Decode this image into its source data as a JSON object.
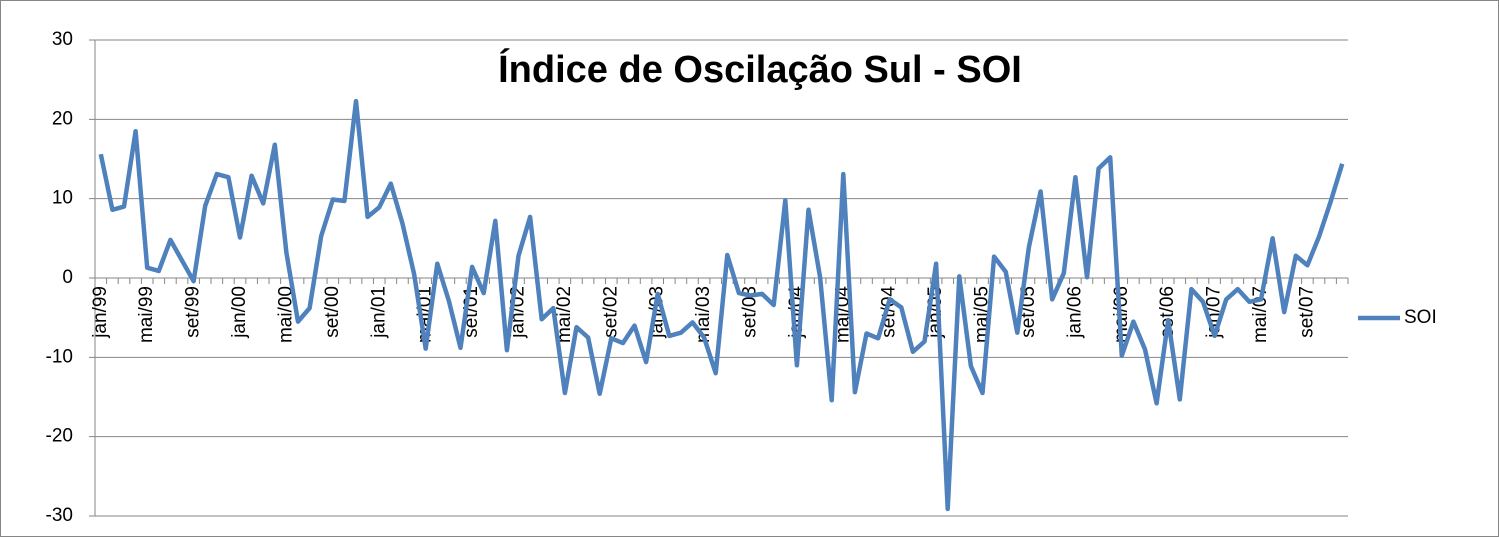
{
  "chart_data": {
    "type": "line",
    "title": "Índice de Oscilação Sul - SOI",
    "categories": [
      "jan/99",
      null,
      null,
      null,
      "mai/99",
      null,
      null,
      null,
      "set/99",
      null,
      null,
      null,
      "jan/00",
      null,
      null,
      null,
      "mai/00",
      null,
      null,
      null,
      "set/00",
      null,
      null,
      null,
      "jan/01",
      null,
      null,
      null,
      "mai/01",
      null,
      null,
      null,
      "set/01",
      null,
      null,
      null,
      "jan/02",
      null,
      null,
      null,
      "mai/02",
      null,
      null,
      null,
      "set/02",
      null,
      null,
      null,
      "jan/03",
      null,
      null,
      null,
      "mai/03",
      null,
      null,
      null,
      "set/03",
      null,
      null,
      null,
      "jan/04",
      null,
      null,
      null,
      "mai/04",
      null,
      null,
      null,
      "set/04",
      null,
      null,
      null,
      "jan/05",
      null,
      null,
      null,
      "mai/05",
      null,
      null,
      null,
      "set/05",
      null,
      null,
      null,
      "jan/06",
      null,
      null,
      null,
      "mai/06",
      null,
      null,
      null,
      "set/06",
      null,
      null,
      null,
      "jan/07",
      null,
      null,
      null,
      "mai/07",
      null,
      null,
      null,
      "set/07",
      null,
      null,
      null
    ],
    "series": [
      {
        "name": "SOI",
        "color": "#4f81bd",
        "values": [
          15.6,
          8.6,
          9.0,
          18.5,
          1.3,
          0.9,
          4.8,
          2.2,
          -0.4,
          9.1,
          13.1,
          12.7,
          5.1,
          12.9,
          9.4,
          16.8,
          3.2,
          -5.5,
          -3.8,
          5.3,
          9.9,
          9.7,
          22.3,
          7.7,
          8.9,
          11.9,
          6.9,
          0.5,
          -8.9,
          1.8,
          -2.9,
          -8.8,
          1.4,
          -1.9,
          7.2,
          -9.1,
          2.8,
          7.7,
          -5.2,
          -3.8,
          -14.5,
          -6.2,
          -7.5,
          -14.6,
          -7.6,
          -8.2,
          -6.0,
          -10.6,
          -2.0,
          -7.3,
          -6.9,
          -5.6,
          -7.5,
          -12.0,
          2.9,
          -1.9,
          -2.2,
          -2.0,
          -3.4,
          9.8,
          -11.0,
          8.6,
          0.1,
          -15.4,
          13.1,
          -14.4,
          -7.0,
          -7.6,
          -2.7,
          -3.7,
          -9.3,
          -8.0,
          1.8,
          -29.1,
          0.2,
          -11.1,
          -14.5,
          2.7,
          0.8,
          -6.9,
          3.9,
          10.9,
          -2.7,
          0.6,
          12.7,
          0.1,
          13.8,
          15.2,
          -9.8,
          -5.5,
          -9.0,
          -15.8,
          -5.3,
          -15.3,
          -1.4,
          -3.0,
          -7.3,
          -2.7,
          -1.4,
          -3.0,
          -2.7,
          5.0,
          -4.3,
          2.8,
          1.6,
          5.2,
          9.6,
          14.4
        ]
      }
    ],
    "ylim": [
      -30,
      30
    ],
    "yticks": [
      -30,
      -20,
      -10,
      0,
      10,
      20,
      30
    ],
    "grid": true,
    "legend": "right"
  }
}
